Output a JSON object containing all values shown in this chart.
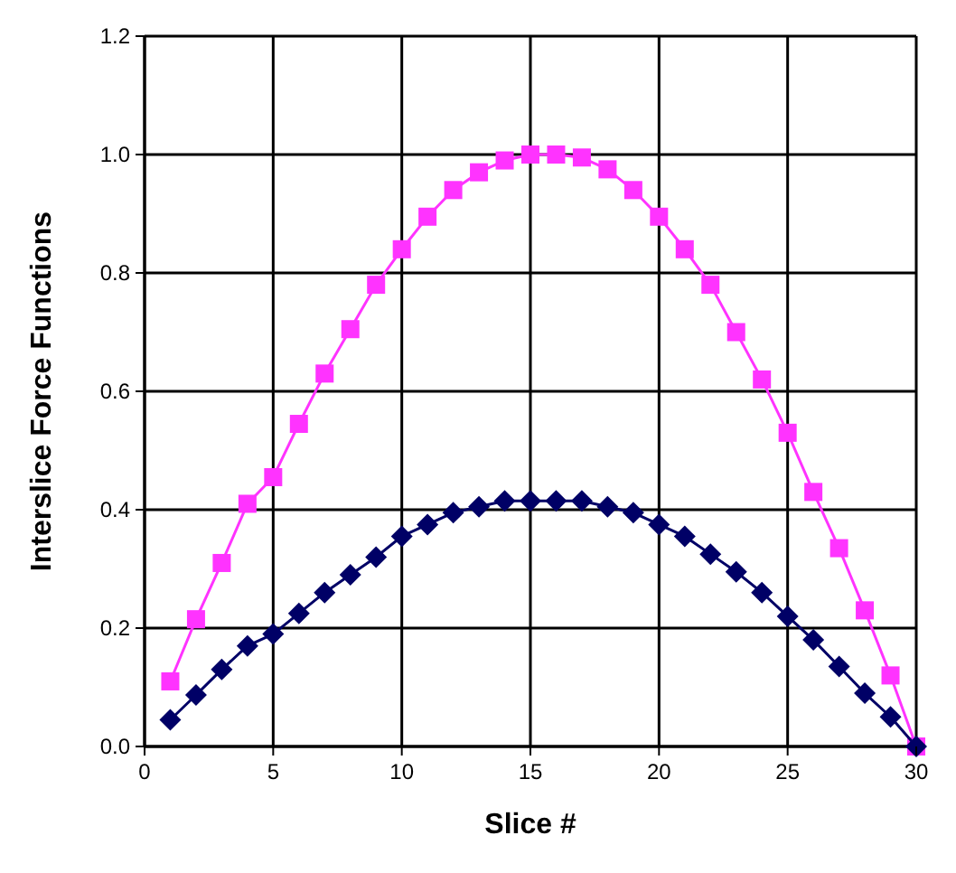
{
  "chart_data": {
    "type": "line",
    "xlabel": "Slice #",
    "ylabel": "Interslice Force Functions",
    "x": [
      1,
      2,
      3,
      4,
      5,
      6,
      7,
      8,
      9,
      10,
      11,
      12,
      13,
      14,
      15,
      16,
      17,
      18,
      19,
      20,
      21,
      22,
      23,
      24,
      25,
      26,
      27,
      28,
      29,
      30
    ],
    "series": [
      {
        "color": "#ff33ff",
        "marker": "square",
        "values": [
          0.11,
          0.215,
          0.31,
          0.41,
          0.455,
          0.545,
          0.63,
          0.705,
          0.78,
          0.84,
          0.895,
          0.94,
          0.97,
          0.99,
          1.0,
          1.0,
          0.995,
          0.975,
          0.94,
          0.895,
          0.84,
          0.78,
          0.7,
          0.62,
          0.53,
          0.43,
          0.335,
          0.23,
          0.12,
          0.0
        ]
      },
      {
        "color": "#000066",
        "marker": "diamond",
        "values": [
          0.045,
          0.087,
          0.13,
          0.17,
          0.19,
          0.225,
          0.26,
          0.29,
          0.32,
          0.355,
          0.375,
          0.395,
          0.405,
          0.415,
          0.415,
          0.415,
          0.415,
          0.405,
          0.395,
          0.375,
          0.355,
          0.325,
          0.295,
          0.26,
          0.22,
          0.18,
          0.135,
          0.09,
          0.05,
          0.0
        ]
      }
    ],
    "xlim": [
      0,
      30
    ],
    "xticks": [
      0,
      5,
      10,
      15,
      20,
      25,
      30
    ],
    "ylim": [
      0,
      1.2
    ],
    "yticks": [
      {
        "value": 0,
        "label": "0.0"
      },
      {
        "value": 0.2,
        "label": "0.2"
      },
      {
        "value": 0.4,
        "label": "0.4"
      },
      {
        "value": 0.6,
        "label": "0.6"
      },
      {
        "value": 0.8,
        "label": "0.8"
      },
      {
        "value": 1,
        "label": "1.0"
      },
      {
        "value": 1.2,
        "label": "1.2"
      }
    ],
    "grid": true,
    "line_style": "solid"
  }
}
